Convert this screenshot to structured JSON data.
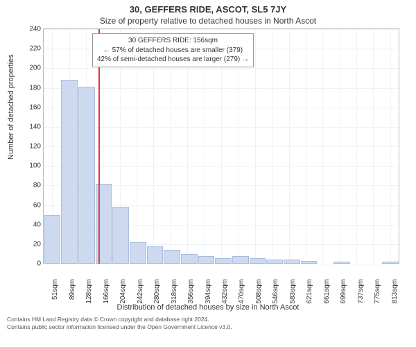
{
  "header": {
    "address": "30, GEFFERS RIDE, ASCOT, SL5 7JY",
    "subtitle": "Size of property relative to detached houses in North Ascot"
  },
  "chart": {
    "type": "histogram",
    "ylabel": "Number of detached properties",
    "xlabel": "Distribution of detached houses by size in North Ascot",
    "ylim": [
      0,
      240
    ],
    "ytick_step": 20,
    "yticks": [
      0,
      20,
      40,
      60,
      80,
      100,
      120,
      140,
      160,
      180,
      200,
      220,
      240
    ],
    "xticks": [
      51,
      89,
      128,
      166,
      204,
      242,
      280,
      318,
      356,
      394,
      432,
      470,
      508,
      546,
      583,
      621,
      661,
      699,
      737,
      775,
      813
    ],
    "xunit": "sqm",
    "bar_values": [
      50,
      188,
      181,
      82,
      58,
      22,
      18,
      14,
      10,
      8,
      6,
      8,
      6,
      4,
      4,
      3,
      0,
      2,
      0,
      0,
      2
    ],
    "bar_fill": "#cdd9ee",
    "bar_border": "#a9bddf",
    "grid_color": "#eef2f7",
    "axis_border": "#bbbbbb",
    "background": "#ffffff",
    "marker": {
      "value_sqm": 156,
      "color": "#e23b3b"
    },
    "annotation": {
      "line1": "30 GEFFERS RIDE: 156sqm",
      "line2": "← 57% of detached houses are smaller (379)",
      "line3": "42% of semi-detached houses are larger (279) →",
      "border": "#999999"
    }
  },
  "footer": {
    "line1": "Contains HM Land Registry data © Crown copyright and database right 2024.",
    "line2": "Contains public sector information licensed under the Open Government Licence v3.0."
  }
}
